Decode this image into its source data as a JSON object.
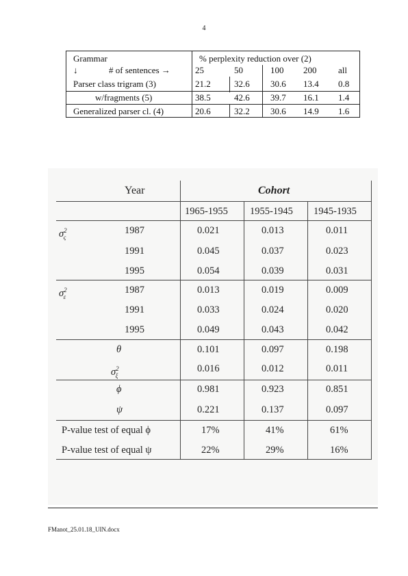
{
  "page": {
    "number": "4",
    "footer_filename": "FManot_25.01.18_UIN.docx"
  },
  "table1": {
    "grammar_header": "Grammar",
    "header_right": "% perplexity reduction over (2)",
    "arrow_down": "↓",
    "sentences_label": "# of sentences →",
    "columns": [
      "25",
      "50",
      "100",
      "200",
      "all"
    ],
    "rows": [
      {
        "label": "Parser class trigram (3)",
        "values": [
          "21.2",
          "32.6",
          "30.6",
          "13.4",
          "0.8"
        ]
      },
      {
        "label": "w/fragments (5)",
        "values": [
          "38.5",
          "42.6",
          "39.7",
          "16.1",
          "1.4"
        ]
      },
      {
        "label": "Generalized parser cl. (4)",
        "values": [
          "20.6",
          "32.2",
          "30.6",
          "14.9",
          "1.6"
        ]
      }
    ]
  },
  "table2": {
    "year_header": "Year",
    "cohort_header": "Cohort",
    "columns": [
      "1965-1955",
      "1955-1945",
      "1945-1935"
    ],
    "rows": [
      {
        "symbol": "σ",
        "sub": "ς",
        "sup": "2",
        "year": "1987",
        "values": [
          "0.021",
          "0.013",
          "0.011"
        ]
      },
      {
        "symbol": "",
        "year": "1991",
        "values": [
          "0.045",
          "0.037",
          "0.023"
        ]
      },
      {
        "symbol": "",
        "year": "1995",
        "values": [
          "0.054",
          "0.039",
          "0.031"
        ]
      },
      {
        "symbol": "σ",
        "sub": "ε",
        "sup": "2",
        "year": "1987",
        "values": [
          "0.013",
          "0.019",
          "0.009"
        ]
      },
      {
        "symbol": "",
        "year": "1991",
        "values": [
          "0.033",
          "0.024",
          "0.020"
        ]
      },
      {
        "symbol": "",
        "year": "1995",
        "values": [
          "0.049",
          "0.043",
          "0.042"
        ]
      },
      {
        "param": "θ",
        "values": [
          "0.101",
          "0.097",
          "0.198"
        ]
      },
      {
        "param": "σ",
        "sub": "ξ",
        "sup": "2",
        "values": [
          "0.016",
          "0.012",
          "0.011"
        ]
      },
      {
        "param": "ϕ",
        "values": [
          "0.981",
          "0.923",
          "0.851"
        ]
      },
      {
        "param": "ψ",
        "values": [
          "0.221",
          "0.137",
          "0.097"
        ]
      },
      {
        "label": "P-value test of equal ϕ",
        "values": [
          "17%",
          "41%",
          "61%"
        ]
      },
      {
        "label": "P-value test of equal ψ",
        "values": [
          "22%",
          "29%",
          "16%"
        ]
      }
    ]
  }
}
